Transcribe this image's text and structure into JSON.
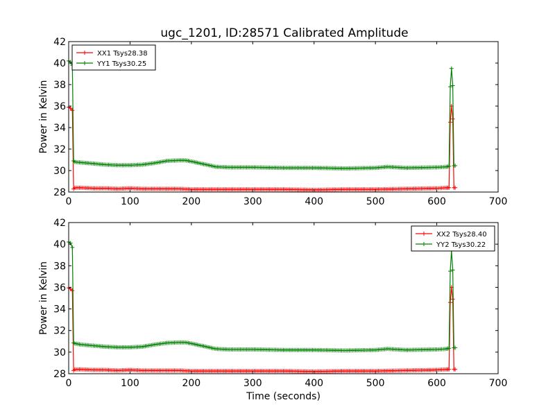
{
  "title": "ugc_1201, ID:28571 Calibrated Amplitude",
  "chart_data": [
    {
      "type": "line",
      "ylabel": "Power in Kelvin",
      "xlabel": "",
      "xlim": [
        0,
        700
      ],
      "ylim": [
        28,
        42
      ],
      "xticks": [
        "0",
        "100",
        "200",
        "300",
        "400",
        "500",
        "600",
        "700"
      ],
      "yticks": [
        "28",
        "30",
        "32",
        "34",
        "36",
        "38",
        "40",
        "42"
      ],
      "legend_position": "top-left",
      "grid": false,
      "series": [
        {
          "name": "XX1 Tsys28.38",
          "color": "#ff0000",
          "marker": "plus",
          "x": [
            0,
            3,
            6,
            8,
            10,
            20,
            40,
            60,
            80,
            100,
            120,
            140,
            160,
            180,
            200,
            220,
            240,
            260,
            300,
            350,
            400,
            450,
            500,
            550,
            600,
            616,
            620,
            622,
            624,
            626,
            628,
            630
          ],
          "y": [
            35.9,
            35.8,
            35.6,
            28.3,
            28.4,
            28.4,
            28.35,
            28.35,
            28.3,
            28.35,
            28.3,
            28.3,
            28.3,
            28.3,
            28.25,
            28.25,
            28.25,
            28.25,
            28.25,
            28.25,
            28.2,
            28.25,
            28.25,
            28.3,
            28.35,
            28.4,
            28.4,
            34.5,
            36.0,
            34.8,
            28.4,
            28.4
          ]
        },
        {
          "name": "YY1 Tsys30.25",
          "color": "#008000",
          "marker": "plus",
          "x": [
            0,
            3,
            6,
            8,
            10,
            20,
            40,
            60,
            80,
            100,
            120,
            140,
            160,
            180,
            190,
            200,
            220,
            240,
            260,
            300,
            350,
            400,
            450,
            500,
            520,
            550,
            600,
            616,
            620,
            622,
            624,
            626,
            628,
            630
          ],
          "y": [
            40.2,
            40.1,
            39.8,
            30.9,
            30.8,
            30.75,
            30.65,
            30.55,
            30.5,
            30.5,
            30.55,
            30.7,
            30.9,
            30.95,
            30.95,
            30.85,
            30.6,
            30.35,
            30.3,
            30.3,
            30.25,
            30.25,
            30.2,
            30.25,
            30.35,
            30.25,
            30.3,
            30.35,
            30.4,
            37.8,
            39.5,
            37.9,
            30.45,
            30.45
          ]
        }
      ]
    },
    {
      "type": "line",
      "ylabel": "Power in Kelvin",
      "xlabel": "Time (seconds)",
      "xlim": [
        0,
        700
      ],
      "ylim": [
        28,
        42
      ],
      "xticks": [
        "0",
        "100",
        "200",
        "300",
        "400",
        "500",
        "600",
        "700"
      ],
      "yticks": [
        "28",
        "30",
        "32",
        "34",
        "36",
        "38",
        "40",
        "42"
      ],
      "legend_position": "top-right",
      "grid": false,
      "series": [
        {
          "name": "XX2 Tsys28.40",
          "color": "#ff0000",
          "marker": "plus",
          "x": [
            0,
            3,
            6,
            8,
            10,
            20,
            40,
            60,
            80,
            100,
            120,
            140,
            160,
            180,
            200,
            220,
            240,
            260,
            300,
            350,
            400,
            450,
            500,
            550,
            600,
            616,
            620,
            622,
            624,
            626,
            628,
            630
          ],
          "y": [
            35.95,
            35.85,
            35.7,
            28.3,
            28.4,
            28.4,
            28.35,
            28.35,
            28.3,
            28.35,
            28.3,
            28.3,
            28.3,
            28.3,
            28.25,
            28.25,
            28.25,
            28.25,
            28.25,
            28.25,
            28.2,
            28.25,
            28.25,
            28.3,
            28.35,
            28.4,
            28.4,
            34.6,
            36.0,
            34.9,
            28.4,
            28.4
          ]
        },
        {
          "name": "YY2 Tsys30.22",
          "color": "#008000",
          "marker": "plus",
          "x": [
            0,
            3,
            6,
            8,
            10,
            20,
            40,
            60,
            80,
            100,
            120,
            140,
            160,
            180,
            190,
            200,
            220,
            240,
            260,
            300,
            350,
            400,
            450,
            500,
            520,
            550,
            600,
            616,
            620,
            622,
            624,
            626,
            628,
            630
          ],
          "y": [
            40.2,
            40.1,
            39.7,
            30.85,
            30.8,
            30.7,
            30.6,
            30.5,
            30.45,
            30.45,
            30.5,
            30.7,
            30.85,
            30.9,
            30.9,
            30.8,
            30.55,
            30.3,
            30.25,
            30.25,
            30.2,
            30.2,
            30.15,
            30.2,
            30.3,
            30.2,
            30.25,
            30.3,
            30.35,
            37.5,
            39.4,
            37.6,
            30.4,
            30.4
          ]
        }
      ]
    }
  ]
}
